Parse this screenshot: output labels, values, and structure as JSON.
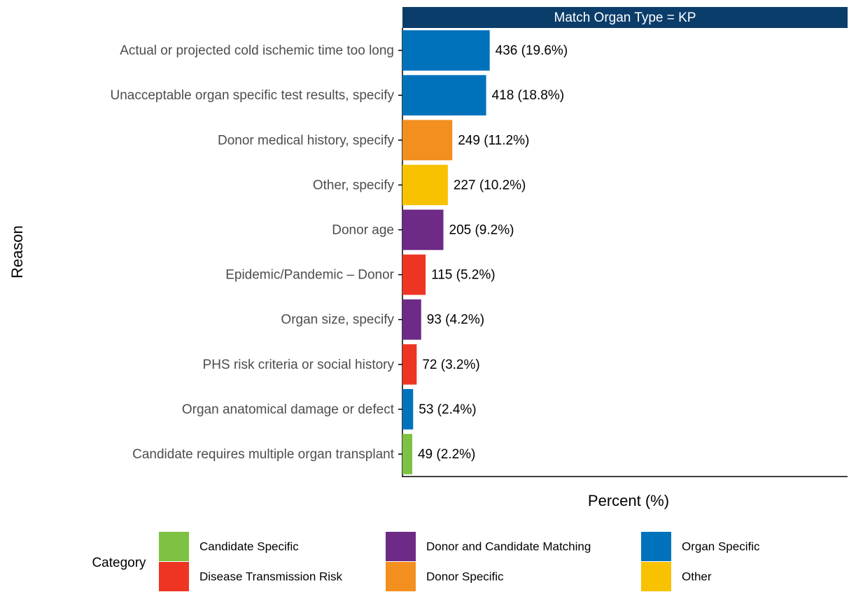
{
  "chart_data": {
    "type": "bar",
    "orientation": "horizontal",
    "title": "Match Organ Type = KP",
    "xlabel": "Percent (%)",
    "ylabel": "Reason",
    "categories": [
      "Actual or projected cold ischemic time too long",
      "Unacceptable organ specific test results, specify",
      "Donor medical history, specify",
      "Other, specify",
      "Donor age",
      "Epidemic/Pandemic – Donor",
      "Organ size, specify",
      "PHS risk criteria or social history",
      "Organ anatomical damage or defect",
      "Candidate requires multiple organ transplant"
    ],
    "values": [
      19.6,
      18.8,
      11.2,
      10.2,
      9.2,
      5.2,
      4.2,
      3.2,
      2.4,
      2.2
    ],
    "value_labels": [
      "436 (19.6%)",
      "418 (18.8%)",
      "249 (11.2%)",
      "227 (10.2%)",
      "205 (9.2%)",
      "115 (5.2%)",
      "93 (4.2%)",
      "72 (3.2%)",
      "53 (2.4%)",
      "49 (2.2%)"
    ],
    "colors": [
      "#0072bc",
      "#0072bc",
      "#f28f1f",
      "#f8c200",
      "#6d2a86",
      "#ee3524",
      "#6d2a86",
      "#ee3524",
      "#0072bc",
      "#7dc242"
    ],
    "xlim": [
      0,
      100
    ],
    "legend": {
      "title": "Category",
      "position": "bottom",
      "items": [
        {
          "name": "Candidate Specific",
          "color": "#7dc242"
        },
        {
          "name": "Disease Transmission Risk",
          "color": "#ee3524"
        },
        {
          "name": "Donor and Candidate Matching",
          "color": "#6d2a86"
        },
        {
          "name": "Donor Specific",
          "color": "#f28f1f"
        },
        {
          "name": "Organ Specific",
          "color": "#0072bc"
        },
        {
          "name": "Other",
          "color": "#f8c200"
        }
      ]
    }
  }
}
